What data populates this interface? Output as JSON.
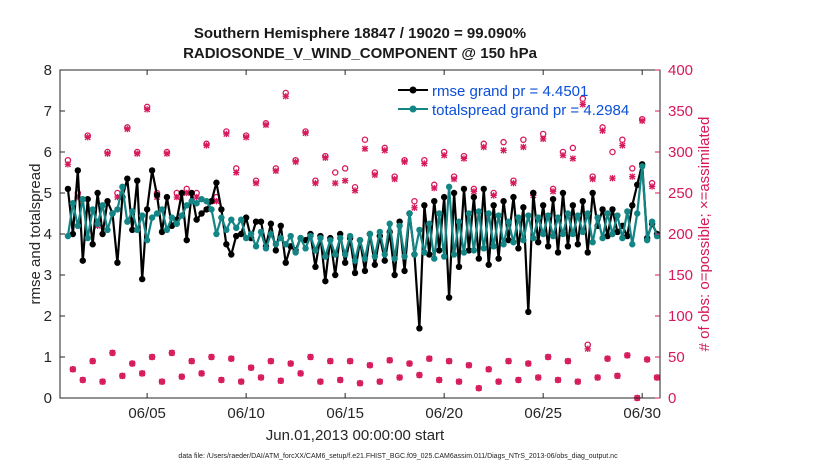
{
  "chart_data": {
    "type": "line",
    "title": "Southern Hemisphere 18847 / 19020 = 99.090%",
    "subtitle": "RADIOSONDE_V_WIND_COMPONENT @ 150 hPa",
    "xlabel": "Jun.01,2013 00:00:00 start",
    "ylabel": "rmse and totalspread",
    "ylabel_right": "# of obs: o=possible; ×=assimilated",
    "xlim": [
      0.6,
      30.9
    ],
    "ylim": [
      0,
      8
    ],
    "ylim_right": [
      0,
      400
    ],
    "x_ticks": [
      5,
      10,
      15,
      20,
      25,
      30
    ],
    "x_tick_labels": [
      "06/05",
      "06/10",
      "06/15",
      "06/20",
      "06/25",
      "06/30"
    ],
    "y_ticks": [
      0,
      1,
      2,
      3,
      4,
      5,
      6,
      7,
      8
    ],
    "y_right_ticks": [
      0,
      50,
      100,
      150,
      200,
      250,
      300,
      350,
      400
    ],
    "grid": false,
    "legend_position": "top-right",
    "footer": "data file: /Users/raeder/DAI/ATM_forcXX/CAM6_setup/f.e21.FHIST_BGC.f09_025.CAM6assim.011/Diags_NTrS_2013-06/obs_diag_output.nc",
    "series": [
      {
        "name": "rmse grand pr = 4.4501",
        "axis": "left",
        "color": "#000000",
        "x": [
          1.0,
          1.25,
          1.5,
          1.75,
          2.0,
          2.25,
          2.5,
          2.75,
          3.0,
          3.25,
          3.5,
          3.75,
          4.0,
          4.25,
          4.5,
          4.75,
          5.0,
          5.25,
          5.5,
          5.75,
          6.0,
          6.25,
          6.5,
          6.75,
          7.0,
          7.25,
          7.5,
          7.75,
          8.0,
          8.25,
          8.5,
          8.75,
          9.0,
          9.25,
          9.5,
          9.75,
          10.0,
          10.25,
          10.5,
          10.75,
          11.0,
          11.25,
          11.5,
          11.75,
          12.0,
          12.25,
          12.5,
          12.75,
          13.0,
          13.25,
          13.5,
          13.75,
          14.0,
          14.25,
          14.5,
          14.75,
          15.0,
          15.25,
          15.5,
          15.75,
          16.0,
          16.25,
          16.5,
          16.75,
          17.0,
          17.25,
          17.5,
          17.75,
          18.0,
          18.25,
          18.5,
          18.75,
          19.0,
          19.25,
          19.5,
          19.75,
          20.0,
          20.25,
          20.5,
          20.75,
          21.0,
          21.25,
          21.5,
          21.75,
          22.0,
          22.25,
          22.5,
          22.75,
          23.0,
          23.25,
          23.5,
          23.75,
          24.0,
          24.25,
          24.5,
          24.75,
          25.0,
          25.25,
          25.5,
          25.75,
          26.0,
          26.25,
          26.5,
          26.75,
          27.0,
          27.25,
          27.5,
          27.75,
          28.0,
          28.25,
          28.5,
          28.75,
          29.0,
          29.25,
          29.5,
          29.75,
          30.0,
          30.25,
          30.5,
          30.75
        ],
        "values": [
          5.1,
          4.0,
          5.55,
          3.35,
          4.85,
          3.75,
          5.0,
          4.0,
          4.8,
          4.5,
          3.3,
          4.9,
          5.35,
          4.1,
          5.3,
          2.9,
          4.6,
          5.55,
          4.95,
          4.05,
          4.9,
          4.2,
          4.35,
          5.0,
          3.85,
          5.0,
          4.35,
          4.5,
          4.6,
          4.8,
          5.25,
          4.6,
          3.75,
          3.5,
          3.95,
          4.0,
          4.4,
          3.9,
          4.3,
          4.3,
          3.7,
          4.25,
          3.6,
          4.2,
          3.3,
          3.7,
          3.6,
          3.9,
          3.85,
          4.0,
          3.2,
          3.95,
          2.85,
          3.9,
          3.0,
          4.0,
          3.3,
          3.9,
          3.05,
          3.85,
          3.1,
          4.0,
          3.25,
          3.95,
          3.35,
          4.05,
          3.0,
          4.3,
          3.1,
          4.5,
          3.5,
          1.7,
          4.7,
          3.5,
          4.8,
          3.6,
          4.9,
          2.45,
          5.0,
          3.2,
          5.1,
          3.6,
          4.9,
          3.4,
          5.1,
          3.25,
          4.7,
          3.4,
          4.8,
          3.85,
          4.9,
          3.65,
          4.65,
          2.1,
          5.0,
          3.8,
          4.7,
          3.7,
          4.85,
          3.55,
          5.0,
          3.7,
          4.7,
          3.75,
          4.8,
          3.55,
          5.0,
          4.2,
          4.6,
          3.95,
          4.6,
          4.05,
          4.2,
          3.95,
          4.7,
          5.2,
          5.7,
          3.9,
          4.25,
          4.0
        ]
      },
      {
        "name": "totalspread grand pr = 4.2984",
        "axis": "left",
        "color": "#148585",
        "x": [
          1.0,
          1.25,
          1.5,
          1.75,
          2.0,
          2.25,
          2.5,
          2.75,
          3.0,
          3.25,
          3.5,
          3.75,
          4.0,
          4.25,
          4.5,
          4.75,
          5.0,
          5.25,
          5.5,
          5.75,
          6.0,
          6.25,
          6.5,
          6.75,
          7.0,
          7.25,
          7.5,
          7.75,
          8.0,
          8.25,
          8.5,
          8.75,
          9.0,
          9.25,
          9.5,
          9.75,
          10.0,
          10.25,
          10.5,
          10.75,
          11.0,
          11.25,
          11.5,
          11.75,
          12.0,
          12.25,
          12.5,
          12.75,
          13.0,
          13.25,
          13.5,
          13.75,
          14.0,
          14.25,
          14.5,
          14.75,
          15.0,
          15.25,
          15.5,
          15.75,
          16.0,
          16.25,
          16.5,
          16.75,
          17.0,
          17.25,
          17.5,
          17.75,
          18.0,
          18.25,
          18.5,
          18.75,
          19.0,
          19.25,
          19.5,
          19.75,
          20.0,
          20.25,
          20.5,
          20.75,
          21.0,
          21.25,
          21.5,
          21.75,
          22.0,
          22.25,
          22.5,
          22.75,
          23.0,
          23.25,
          23.5,
          23.75,
          24.0,
          24.25,
          24.5,
          24.75,
          25.0,
          25.25,
          25.5,
          25.75,
          26.0,
          26.25,
          26.5,
          26.75,
          27.0,
          27.25,
          27.5,
          27.75,
          28.0,
          28.25,
          28.5,
          28.75,
          29.0,
          29.25,
          29.5,
          29.75,
          30.0,
          30.25,
          30.5,
          30.75
        ],
        "values": [
          3.95,
          4.75,
          4.2,
          4.85,
          3.9,
          4.6,
          4.25,
          4.7,
          4.1,
          4.5,
          4.6,
          5.15,
          4.3,
          4.55,
          4.1,
          4.45,
          3.85,
          4.4,
          4.5,
          4.6,
          4.1,
          4.4,
          4.25,
          4.45,
          4.7,
          4.8,
          4.75,
          4.85,
          4.8,
          4.6,
          4.0,
          4.4,
          4.1,
          4.35,
          4.15,
          4.35,
          3.9,
          4.0,
          3.7,
          4.05,
          3.65,
          4.0,
          3.75,
          3.9,
          3.75,
          3.95,
          3.55,
          3.9,
          3.65,
          3.95,
          3.6,
          3.9,
          3.45,
          3.85,
          3.5,
          3.9,
          3.5,
          3.95,
          3.35,
          3.85,
          3.4,
          4.0,
          3.45,
          4.05,
          3.5,
          4.25,
          3.4,
          4.2,
          3.45,
          4.5,
          3.5,
          4.1,
          3.55,
          4.25,
          3.4,
          4.5,
          3.45,
          5.15,
          3.5,
          4.3,
          3.55,
          4.5,
          3.6,
          4.55,
          3.65,
          4.5,
          3.7,
          4.45,
          3.75,
          4.3,
          3.8,
          4.4,
          3.85,
          4.45,
          3.9,
          4.4,
          4.0,
          4.45,
          3.95,
          4.4,
          4.0,
          4.5,
          4.0,
          4.45,
          4.05,
          4.5,
          3.8,
          4.4,
          3.9,
          4.5,
          4.0,
          4.45,
          3.9,
          4.55,
          3.75,
          4.5,
          5.65,
          3.85,
          4.3,
          3.95
        ]
      },
      {
        "name": "possible obs (o)",
        "axis": "right",
        "color": "#d6195c",
        "marker": "circle",
        "x": [
          1.0,
          1.25,
          1.5,
          1.75,
          2.0,
          2.25,
          2.5,
          2.75,
          3.0,
          3.25,
          3.5,
          3.75,
          4.0,
          4.25,
          4.5,
          4.75,
          5.0,
          5.25,
          5.5,
          5.75,
          6.0,
          6.25,
          6.5,
          6.75,
          7.0,
          7.25,
          7.5,
          7.75,
          8.0,
          8.25,
          8.5,
          8.75,
          9.0,
          9.25,
          9.5,
          9.75,
          10.0,
          10.25,
          10.5,
          10.75,
          11.0,
          11.25,
          11.5,
          11.75,
          12.0,
          12.25,
          12.5,
          12.75,
          13.0,
          13.25,
          13.5,
          13.75,
          14.0,
          14.25,
          14.5,
          14.75,
          15.0,
          15.25,
          15.5,
          15.75,
          16.0,
          16.25,
          16.5,
          16.75,
          17.0,
          17.25,
          17.5,
          17.75,
          18.0,
          18.25,
          18.5,
          18.75,
          19.0,
          19.25,
          19.5,
          19.75,
          20.0,
          20.25,
          20.5,
          20.75,
          21.0,
          21.25,
          21.5,
          21.75,
          22.0,
          22.25,
          22.5,
          22.75,
          23.0,
          23.25,
          23.5,
          23.75,
          24.0,
          24.25,
          24.5,
          24.75,
          25.0,
          25.25,
          25.5,
          25.75,
          26.0,
          26.25,
          26.5,
          26.75,
          27.0,
          27.25,
          27.5,
          27.75,
          28.0,
          28.25,
          28.5,
          28.75,
          29.0,
          29.25,
          29.5,
          29.75,
          30.0,
          30.25,
          30.5,
          30.75
        ],
        "values": [
          290,
          35,
          250,
          22,
          320,
          45,
          215,
          20,
          300,
          55,
          250,
          27,
          330,
          42,
          300,
          30,
          355,
          50,
          250,
          20,
          300,
          55,
          250,
          26,
          255,
          45,
          250,
          30,
          310,
          50,
          245,
          22,
          325,
          48,
          280,
          20,
          320,
          37,
          265,
          25,
          335,
          45,
          280,
          21,
          372,
          42,
          290,
          30,
          325,
          50,
          265,
          20,
          295,
          45,
          275,
          22,
          280,
          45,
          257,
          18,
          315,
          40,
          275,
          20,
          305,
          46,
          270,
          25,
          290,
          42,
          240,
          28,
          290,
          48,
          260,
          22,
          300,
          45,
          270,
          20,
          295,
          40,
          255,
          12,
          310,
          35,
          250,
          20,
          312,
          45,
          265,
          22,
          315,
          42,
          250,
          25,
          322,
          50,
          255,
          22,
          300,
          45,
          305,
          20,
          365,
          65,
          270,
          25,
          330,
          48,
          300,
          27,
          315,
          52,
          280,
          0,
          340,
          47,
          262,
          25
        ]
      },
      {
        "name": "assimilated obs (×)",
        "axis": "right",
        "color": "#d6195c",
        "marker": "cross",
        "x": [
          1.0,
          1.25,
          1.5,
          1.75,
          2.0,
          2.25,
          2.5,
          2.75,
          3.0,
          3.25,
          3.5,
          3.75,
          4.0,
          4.25,
          4.5,
          4.75,
          5.0,
          5.25,
          5.5,
          5.75,
          6.0,
          6.25,
          6.5,
          6.75,
          7.0,
          7.25,
          7.5,
          7.75,
          8.0,
          8.25,
          8.5,
          8.75,
          9.0,
          9.25,
          9.5,
          9.75,
          10.0,
          10.25,
          10.5,
          10.75,
          11.0,
          11.25,
          11.5,
          11.75,
          12.0,
          12.25,
          12.5,
          12.75,
          13.0,
          13.25,
          13.5,
          13.75,
          14.0,
          14.25,
          14.5,
          14.75,
          15.0,
          15.25,
          15.5,
          15.75,
          16.0,
          16.25,
          16.5,
          16.75,
          17.0,
          17.25,
          17.5,
          17.75,
          18.0,
          18.25,
          18.5,
          18.75,
          19.0,
          19.25,
          19.5,
          19.75,
          20.0,
          20.25,
          20.5,
          20.75,
          21.0,
          21.25,
          21.5,
          21.75,
          22.0,
          22.25,
          22.5,
          22.75,
          23.0,
          23.25,
          23.5,
          23.75,
          24.0,
          24.25,
          24.5,
          24.75,
          25.0,
          25.25,
          25.5,
          25.75,
          26.0,
          26.25,
          26.5,
          26.75,
          27.0,
          27.25,
          27.5,
          27.75,
          28.0,
          28.25,
          28.5,
          28.75,
          29.0,
          29.25,
          29.5,
          29.75,
          30.0,
          30.25,
          30.5,
          30.75
        ],
        "values": [
          285,
          35,
          245,
          22,
          318,
          45,
          210,
          20,
          298,
          55,
          245,
          27,
          328,
          42,
          298,
          30,
          352,
          50,
          245,
          20,
          298,
          55,
          245,
          26,
          250,
          45,
          245,
          30,
          308,
          50,
          240,
          22,
          322,
          48,
          275,
          20,
          318,
          37,
          262,
          25,
          333,
          45,
          277,
          21,
          368,
          42,
          288,
          30,
          323,
          50,
          262,
          20,
          293,
          45,
          262,
          22,
          265,
          45,
          253,
          18,
          304,
          40,
          272,
          20,
          302,
          46,
          267,
          25,
          288,
          42,
          232,
          28,
          286,
          48,
          256,
          22,
          296,
          45,
          267,
          20,
          292,
          40,
          252,
          12,
          306,
          35,
          247,
          20,
          302,
          45,
          262,
          22,
          306,
          42,
          247,
          25,
          316,
          50,
          252,
          22,
          296,
          45,
          292,
          20,
          358,
          60,
          267,
          25,
          326,
          48,
          268,
          27,
          308,
          52,
          270,
          0,
          338,
          47,
          258,
          25
        ]
      }
    ]
  }
}
